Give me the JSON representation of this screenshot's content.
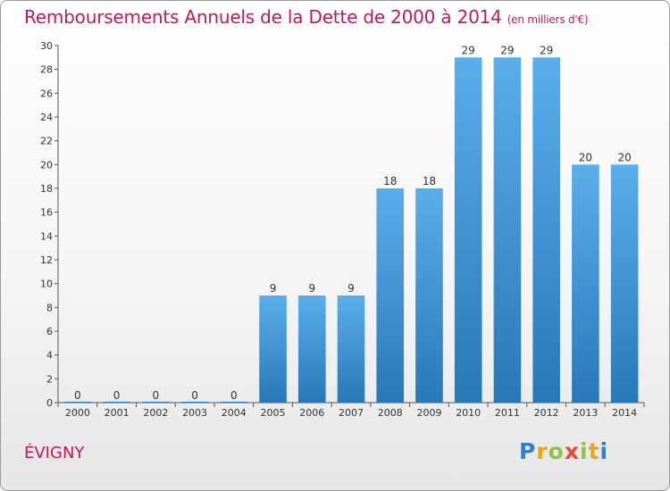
{
  "header": {
    "title": "Remboursements Annuels de la Dette de 2000 à 2014",
    "subtitle": "(en milliers d'€)"
  },
  "footer": {
    "town": "ÉVIGNY",
    "logo": "Proxiti"
  },
  "colors": {
    "title": "#c2185b",
    "bar_top": "#5aaeea",
    "bar_bottom": "#2878b8"
  },
  "chart_data": {
    "type": "bar",
    "title": "Remboursements Annuels de la Dette de 2000 à 2014",
    "subtitle": "(en milliers d'€)",
    "categories": [
      "2000",
      "2001",
      "2002",
      "2003",
      "2004",
      "2005",
      "2006",
      "2007",
      "2008",
      "2009",
      "2010",
      "2011",
      "2012",
      "2013",
      "2014"
    ],
    "values": [
      0,
      0,
      0,
      0,
      0,
      9,
      9,
      9,
      18,
      18,
      29,
      29,
      29,
      20,
      20
    ],
    "xlabel": "",
    "ylabel": "",
    "ylim": [
      0,
      30
    ],
    "yticks": [
      0,
      2,
      4,
      6,
      8,
      10,
      12,
      14,
      16,
      18,
      20,
      22,
      24,
      26,
      28,
      30
    ],
    "grid": false,
    "legend": "none"
  }
}
